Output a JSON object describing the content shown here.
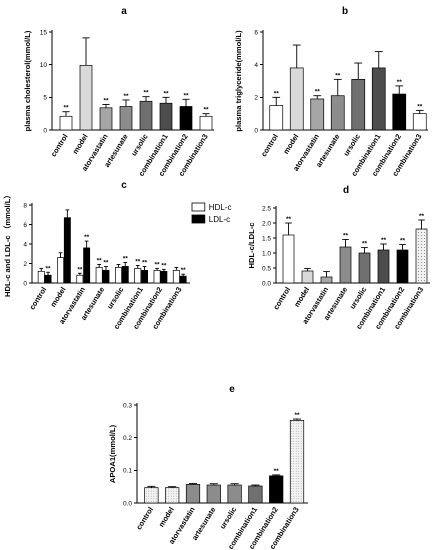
{
  "colors": {
    "white": "#ffffff",
    "lightgray": "#d9d9d9",
    "gray1": "#a6a6a6",
    "gray2": "#8c8c8c",
    "gray3": "#707070",
    "dark": "#4d4d4d",
    "black": "#000000",
    "dotted": "#f2f2f2",
    "verylight": "#ececec"
  },
  "chart_data": [
    {
      "panel": "a",
      "type": "bar",
      "ylabel": "plasma cholesterol(mmol/L)",
      "ylim": [
        0,
        15
      ],
      "yticks": [
        0,
        5,
        10,
        15
      ],
      "categories": [
        "control",
        "model",
        "atorvastatin",
        "artesunate",
        "ursolic",
        "combination1",
        "combination2",
        "combination3"
      ],
      "values": [
        2.1,
        9.9,
        3.4,
        3.6,
        4.4,
        4.1,
        3.6,
        2.1
      ],
      "errors": [
        0.7,
        4.2,
        0.5,
        1.0,
        0.7,
        0.9,
        1.1,
        0.4
      ],
      "sig": [
        "**",
        "",
        "**",
        "**",
        "**",
        "**",
        "**",
        "**"
      ],
      "fills": [
        "white",
        "lightgray",
        "gray1",
        "gray2",
        "gray3",
        "dark",
        "black",
        "white"
      ]
    },
    {
      "panel": "b",
      "type": "bar",
      "ylabel": "plasma triglyceride(mmol/L)",
      "ylim": [
        0,
        6
      ],
      "yticks": [
        0,
        2,
        4,
        6
      ],
      "categories": [
        "control",
        "model",
        "atorvastatin",
        "artesunate",
        "ursolic",
        "combination1",
        "combination2",
        "combination3"
      ],
      "values": [
        1.5,
        3.8,
        1.9,
        2.1,
        3.1,
        3.8,
        2.2,
        1.0
      ],
      "errors": [
        0.5,
        1.4,
        0.2,
        1.0,
        1.0,
        1.0,
        0.5,
        0.2
      ],
      "sig": [
        "**",
        "",
        "**",
        "**",
        "",
        "",
        "**",
        "**"
      ],
      "fills": [
        "white",
        "lightgray",
        "gray1",
        "gray2",
        "gray3",
        "dark",
        "black",
        "white"
      ]
    },
    {
      "panel": "c",
      "type": "bar",
      "ylabel": "HDL-c and LDL-c （mmol/L）",
      "ylim": [
        0,
        8
      ],
      "yticks": [
        0,
        2,
        4,
        6,
        8
      ],
      "categories": [
        "control",
        "model",
        "atorvastatin",
        "artesunate",
        "ursolic",
        "combination1",
        "combination2",
        "combination3"
      ],
      "series": [
        {
          "name": "HDL-c",
          "values": [
            1.2,
            2.6,
            0.8,
            1.6,
            1.6,
            1.5,
            1.3,
            1.3
          ],
          "errors": [
            0.3,
            0.5,
            0.2,
            0.3,
            0.3,
            0.3,
            0.2,
            0.3
          ],
          "sig": [
            "",
            "",
            "**",
            "**",
            "",
            "**",
            "**",
            ""
          ],
          "fill": "white"
        },
        {
          "name": "LDL-c",
          "values": [
            0.8,
            6.7,
            3.6,
            1.3,
            1.7,
            1.3,
            1.2,
            0.7
          ],
          "errors": [
            0.3,
            0.8,
            0.7,
            0.4,
            0.4,
            0.4,
            0.2,
            0.2
          ],
          "sig": [
            "**",
            "",
            "**",
            "**",
            "**",
            "**",
            "**",
            "**"
          ],
          "fill": "black"
        }
      ],
      "legend": [
        "HDL-c",
        "LDL-c"
      ]
    },
    {
      "panel": "d",
      "type": "bar",
      "ylabel": "HDL-c/LDL-c",
      "ylim": [
        0,
        2.5
      ],
      "yticks": [
        0.0,
        0.5,
        1.0,
        1.5,
        2.0,
        2.5
      ],
      "categories": [
        "control",
        "model",
        "atorvastatin",
        "artesunate",
        "ursolic",
        "combination1",
        "combination2",
        "combination3"
      ],
      "values": [
        1.6,
        0.4,
        0.2,
        1.2,
        1.0,
        1.1,
        1.1,
        1.8
      ],
      "errors": [
        0.4,
        0.08,
        0.18,
        0.25,
        0.18,
        0.2,
        0.18,
        0.3
      ],
      "sig": [
        "**",
        "",
        "",
        "**",
        "**",
        "**",
        "**",
        "**"
      ],
      "fills": [
        "white",
        "lightgray",
        "gray1",
        "gray2",
        "gray3",
        "dark",
        "black",
        "dotted"
      ]
    },
    {
      "panel": "e",
      "type": "bar",
      "ylabel": "APOA1(mmol/L)",
      "ylim": [
        0,
        0.3
      ],
      "yticks": [
        0.0,
        0.1,
        0.2,
        0.3
      ],
      "categories": [
        "control",
        "model",
        "atorvastatin",
        "artesunate",
        "ursolic",
        "combination1",
        "combination2",
        "combination3"
      ],
      "values": [
        0.047,
        0.047,
        0.057,
        0.055,
        0.055,
        0.052,
        0.083,
        0.253
      ],
      "errors": [
        0.004,
        0.003,
        0.003,
        0.004,
        0.004,
        0.003,
        0.003,
        0.004
      ],
      "sig": [
        "",
        "",
        "",
        "",
        "",
        "",
        "**",
        "**"
      ],
      "fills": [
        "verylight",
        "verylight",
        "gray2",
        "gray2",
        "gray2",
        "gray3",
        "black",
        "verylight"
      ]
    }
  ]
}
